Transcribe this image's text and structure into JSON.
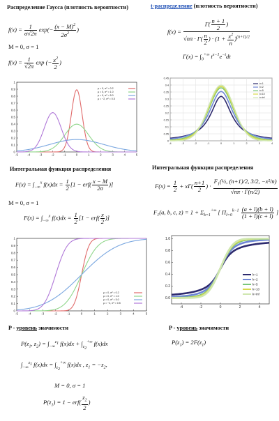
{
  "left": {
    "gauss_title": "Распределение Гаусса (плотность вероятности)",
    "gauss_formula_1_lhs": "f(x) =",
    "gauss_formula_1_exp": "exp",
    "gauss_params": "M = 0, σ = 1",
    "gauss_formula_2_lhs": "f(x) =",
    "integral_title": "Интегральная функция распределения",
    "integral_formula_1": "F(x) = ∫ f(x)dx = ½[1 − erf((x − M)/(2σ))]",
    "integral_params": "M = 0, σ = 1",
    "integral_formula_2": "F(x) = ∫ f(x)dx = ½[1 − erf(x/2)]",
    "p_title_prefix": "P -",
    "p_title_link": "уровень",
    "p_title_suffix": "значимости",
    "p_formula_1": "P(z₁, z₂) = ∫ f(x)dx + ∫ f(x)dx",
    "p_formula_2": "∫ f(x)dx = ∫ f(x)dx , z₁ = −z₂,",
    "p_formula_3": "M = 0, σ = 1",
    "p_formula_4": "P(z₁) = 1 − erf(z₂/2)"
  },
  "right": {
    "t_title_link": "t-распределение",
    "t_title_rest": "(плотность вероятности)",
    "t_formula": "f(x) = Γ((n+1)/2) / (√(nπ)·Γ(n/2)) · (1 + x²/n)^(−(n+1)/2)",
    "gamma_formula": "Γ(x) = ∫₀^{+∞} t^{x−1} e^{−t} dt",
    "integral_title": "Интегральная функция распределения",
    "F_formula": "F(x) = ½ + xΓ((n+1)/2) · ₂F₁(½, (n+1)/2; 3/2; −x²/n) / (√(nπ)·Γ(n/2))",
    "F1_formula": "F₁(a, b, c, z) = 1 + Σ [ Π (a+l)(b+l) / ((1+l)(c+l)) ] zᵏ",
    "p_title_prefix": "P -",
    "p_title_link": "уровень",
    "p_title_suffix": "значимости",
    "p_formula": "P(z₁) = 2F(z₁)"
  },
  "colors": {
    "blue_link": "#1e4fb5",
    "gauss_blue": "#7aa7e0",
    "gauss_red": "#e06a6a",
    "gauss_green": "#8fd68a",
    "gauss_purple": "#b078d8",
    "t_navy": "#2d2a6e",
    "t_blue": "#6f86d6",
    "t_green": "#79c67a",
    "t_yellow": "#d8d84a",
    "t_light": "#cfe7b0"
  },
  "chart_data": [
    {
      "type": "line",
      "title": "",
      "xlim": [
        -5,
        5
      ],
      "ylim": [
        0,
        1.0
      ],
      "xticks": [
        "-5",
        "-4",
        "-3",
        "-2",
        "-1",
        "0",
        "1",
        "2",
        "3",
        "4",
        "5"
      ],
      "yticks": [
        "0",
        "0.1",
        "0.2",
        "0.3",
        "0.4",
        "0.5",
        "0.6",
        "0.7",
        "0.8",
        "0.9",
        "1"
      ],
      "legend": [
        "μ = 0, σ² = 0.2",
        "μ = 0, σ² = 1.0",
        "μ = 0, σ² = 5.0",
        "μ = −2, σ² = 0.5"
      ],
      "legend_position": "top-right",
      "series": [
        {
          "name": "μ = 0, σ² = 0.2",
          "mu": 0,
          "var": 0.2
        },
        {
          "name": "μ = 0, σ² = 1.0",
          "mu": 0,
          "var": 1.0
        },
        {
          "name": "μ = 0, σ² = 5.0",
          "mu": 0,
          "var": 5.0
        },
        {
          "name": "μ = −2, σ² = 0.5",
          "mu": -2,
          "var": 0.5
        }
      ]
    },
    {
      "type": "line",
      "title": "",
      "xlim": [
        -4,
        4
      ],
      "ylim": [
        0,
        0.45
      ],
      "xticks": [
        "-4",
        "-3",
        "-2",
        "-1",
        "0",
        "1",
        "2",
        "3",
        "4"
      ],
      "yticks": [
        "0",
        "0.05",
        "0.1",
        "0.15",
        "0.2",
        "0.25",
        "0.3",
        "0.35",
        "0.4",
        "0.45"
      ],
      "legend": [
        "n=1",
        "n=2",
        "n=5",
        "n=10",
        "n=inf"
      ],
      "legend_position": "top-right",
      "series": [
        {
          "name": "n=1",
          "df": 1
        },
        {
          "name": "n=2",
          "df": 2
        },
        {
          "name": "n=5",
          "df": 5
        },
        {
          "name": "n=10",
          "df": 10
        },
        {
          "name": "n=inf",
          "df": 1000
        }
      ]
    },
    {
      "type": "line",
      "title": "",
      "xlim": [
        -5,
        5
      ],
      "ylim": [
        0,
        1.0
      ],
      "xticks": [
        "-5",
        "-4",
        "-3",
        "-2",
        "-1",
        "0",
        "1",
        "2",
        "3",
        "4",
        "5"
      ],
      "yticks": [
        "0",
        "0.1",
        "0.2",
        "0.3",
        "0.4",
        "0.5",
        "0.6",
        "0.7",
        "0.8",
        "0.9",
        "1"
      ],
      "legend": [
        "μ = 0, σ² = 0.2",
        "μ = 0, σ² = 1.0",
        "μ = 0, σ² = 5.0",
        "μ = −2, σ² = 0.5"
      ],
      "legend_position": "bottom-right",
      "series": [
        {
          "name": "μ = 0, σ² = 0.2",
          "mu": 0,
          "var": 0.2
        },
        {
          "name": "μ = 0, σ² = 1.0",
          "mu": 0,
          "var": 1.0
        },
        {
          "name": "μ = 0, σ² = 5.0",
          "mu": 0,
          "var": 5.0
        },
        {
          "name": "μ = −2, σ² = 0.5",
          "mu": -2,
          "var": 0.5
        }
      ]
    },
    {
      "type": "line",
      "title": "",
      "xlim": [
        -5,
        5
      ],
      "ylim": [
        -0.1,
        1.05
      ],
      "xticks": [
        "-4",
        "-2",
        "0",
        "2",
        "4"
      ],
      "yticks": [
        "0.0",
        "0.2",
        "0.4",
        "0.6",
        "0.8",
        "1.0"
      ],
      "legend": [
        "k=1",
        "k=2",
        "k=5",
        "k=10",
        "k=inf"
      ],
      "legend_position": "bottom-right",
      "series": [
        {
          "name": "k=1",
          "df": 1
        },
        {
          "name": "k=2",
          "df": 2
        },
        {
          "name": "k=5",
          "df": 5
        },
        {
          "name": "k=10",
          "df": 10
        },
        {
          "name": "k=inf",
          "df": 1000
        }
      ]
    }
  ]
}
